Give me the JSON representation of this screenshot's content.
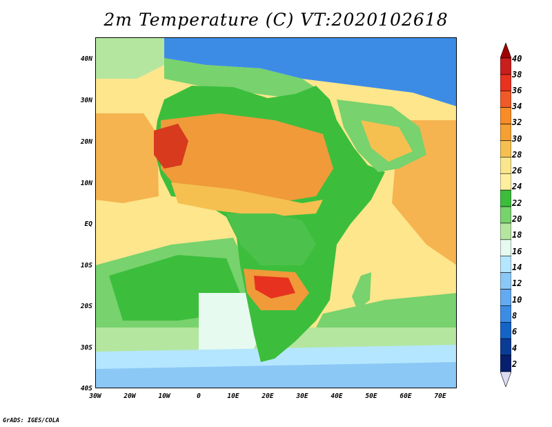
{
  "title": "2m Temperature (C) VT:2020102618",
  "credit": "GrADS: IGES/COLA",
  "axes": {
    "lat_labels": [
      "40N",
      "30N",
      "20N",
      "10N",
      "EQ",
      "10S",
      "20S",
      "30S",
      "40S"
    ],
    "lon_labels": [
      "30W",
      "20W",
      "10W",
      "0",
      "10E",
      "20E",
      "30E",
      "40E",
      "50E",
      "60E",
      "70E"
    ],
    "lon_range": [
      -30,
      75
    ],
    "lat_range": [
      -40,
      45
    ]
  },
  "colorbar": {
    "labels": [
      "40",
      "38",
      "36",
      "34",
      "32",
      "30",
      "28",
      "26",
      "24",
      "22",
      "20",
      "18",
      "16",
      "14",
      "12",
      "10",
      "8",
      "6",
      "4",
      "2"
    ],
    "colors": [
      "#a00000",
      "#c81e1e",
      "#e6321e",
      "#f05a28",
      "#fa8c28",
      "#f5a032",
      "#f5c050",
      "#fae68c",
      "#fff0a0",
      "#3cbe3c",
      "#78d26e",
      "#b4e6a0",
      "#e6faf0",
      "#b4e6ff",
      "#8cc8f5",
      "#64aaf0",
      "#3c8ce6",
      "#1464c8",
      "#0a3c96",
      "#06206e",
      "#dcdcf5"
    ]
  },
  "legend_colors": {
    "ocean_tropical": "#fde68c",
    "ocean_warm": "#f5b450",
    "land_hot": "#f09a3a",
    "land_very_hot": "#d83a1e",
    "land_mild": "#4cc24c",
    "ocean_cool": "#64c864",
    "ocean_cold": "#dcf5fa",
    "ocean_colder": "#96c8f0",
    "med_cold": "#3c8ce6",
    "mideast_cold": "#3c8ce6"
  }
}
